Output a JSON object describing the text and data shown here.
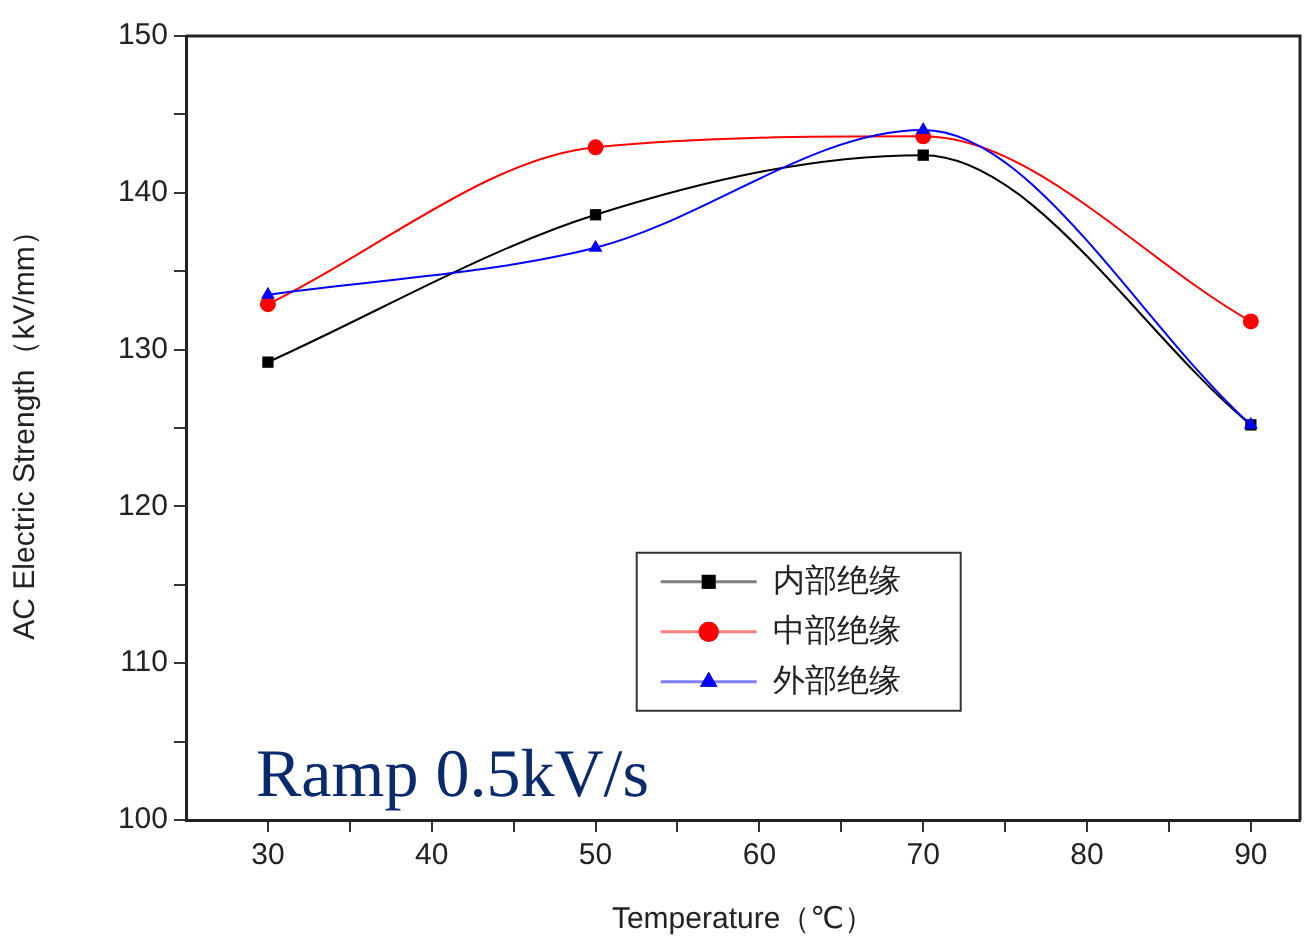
{
  "chart_data": {
    "type": "line",
    "xlabel": "Temperature（℃）",
    "ylabel": "AC Electric Strength（kV/mm）",
    "x": [
      30,
      50,
      70,
      90
    ],
    "series": [
      {
        "name": "内部绝缘",
        "color": "#000000",
        "marker": "square",
        "values": [
          129.2,
          138.6,
          142.4,
          125.2
        ]
      },
      {
        "name": "中部绝缘",
        "color": "#ff0000",
        "marker": "circle",
        "values": [
          132.9,
          142.9,
          143.6,
          131.8
        ]
      },
      {
        "name": "外部绝缘",
        "color": "#0000ff",
        "marker": "triangle",
        "values": [
          133.5,
          136.5,
          144.0,
          125.2
        ]
      }
    ],
    "xlim": [
      25,
      93
    ],
    "ylim": [
      100,
      150
    ],
    "xticks": [
      30,
      {
        "value": 35,
        "label": null
      },
      40,
      {
        "value": 45,
        "label": null
      },
      50,
      {
        "value": 55,
        "label": null
      },
      60,
      {
        "value": 65,
        "label": null
      },
      70,
      {
        "value": 75,
        "label": null
      },
      80,
      {
        "value": 85,
        "label": null
      },
      90
    ],
    "yticks": [
      100,
      {
        "value": 105,
        "label": null
      },
      110,
      {
        "value": 115,
        "label": null
      },
      120,
      {
        "value": 125,
        "label": null
      },
      130,
      {
        "value": 135,
        "label": null
      },
      140,
      {
        "value": 145,
        "label": null
      },
      150
    ],
    "grid": false,
    "legend": "bottom",
    "annotations": [
      "Ramp 0.5kV/s"
    ]
  }
}
